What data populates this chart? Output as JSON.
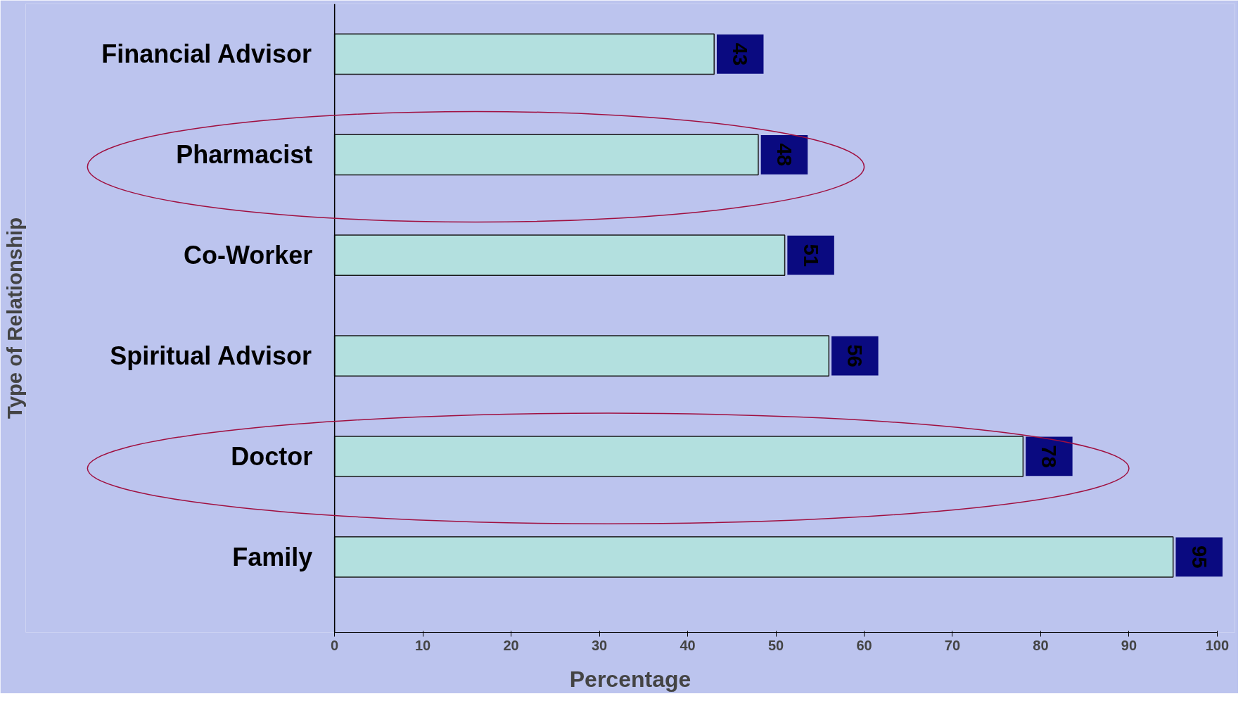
{
  "chart_data": {
    "type": "bar",
    "orientation": "horizontal",
    "xlabel": "Percentage",
    "ylabel": "Type of Relationship",
    "categories": [
      "Financial Advisor",
      "Pharmacist",
      "Co-Worker",
      "Spiritual Advisor",
      "Doctor",
      "Family"
    ],
    "values": [
      43,
      48,
      51,
      56,
      78,
      95
    ],
    "color": "#b3e0df",
    "xlim": [
      0,
      100
    ],
    "xticks": [
      0,
      10,
      20,
      30,
      40,
      50,
      60,
      70,
      80,
      90,
      100
    ],
    "grid": false,
    "data_labels": true
  }
}
